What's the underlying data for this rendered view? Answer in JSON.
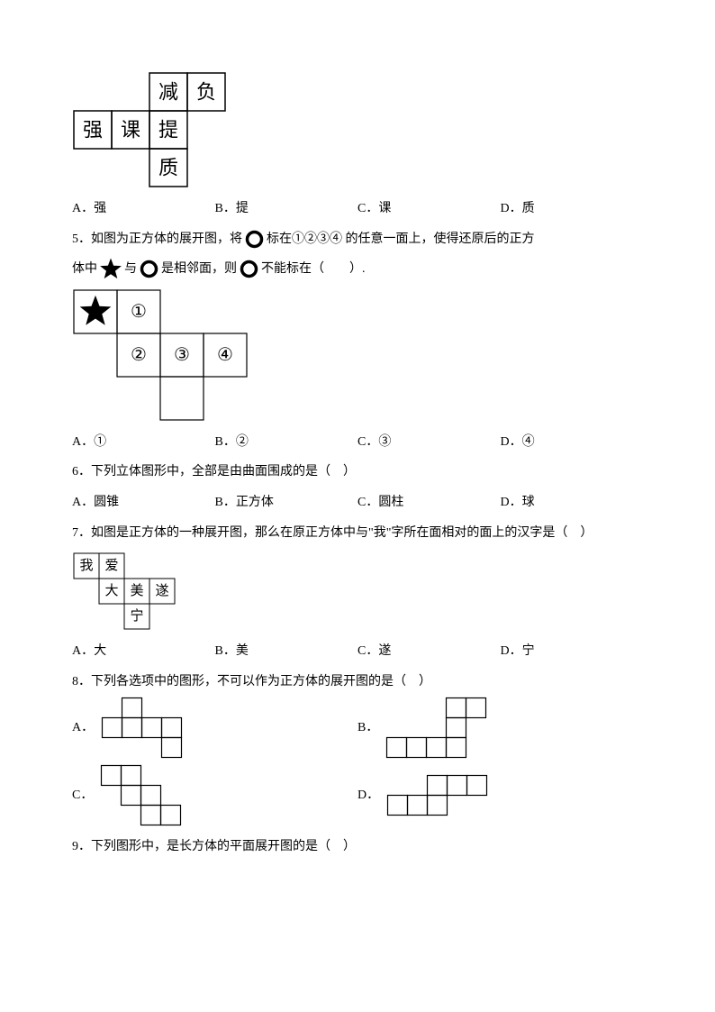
{
  "q4": {
    "net": {
      "cell": 42,
      "stroke": "#000000",
      "stroke_w": 1.5,
      "font_size": 22,
      "font_family": "KaiTi",
      "cells": [
        {
          "r": 0,
          "c": 2,
          "t": "减"
        },
        {
          "r": 0,
          "c": 3,
          "t": "负"
        },
        {
          "r": 1,
          "c": 0,
          "t": "强"
        },
        {
          "r": 1,
          "c": 1,
          "t": "课"
        },
        {
          "r": 1,
          "c": 2,
          "t": "提"
        },
        {
          "r": 2,
          "c": 2,
          "t": "质"
        }
      ]
    },
    "opts": {
      "A": "A．强",
      "B": "B．提",
      "C": "C．课",
      "D": "D．质"
    }
  },
  "q5": {
    "line1a": "5．如图为正方体的展开图，将",
    "line1b": "标在①②③④ 的任意一面上，使得还原后的正方",
    "line2a": "体中",
    "line2b": "与",
    "line2c": "是相邻面，则",
    "line2d": "不能标在（　　）.",
    "net": {
      "cell": 48,
      "stroke": "#000000",
      "stroke_w": 1.2,
      "cells": [
        {
          "r": 0,
          "c": 0,
          "star": true
        },
        {
          "r": 0,
          "c": 1,
          "t": "①"
        },
        {
          "r": 1,
          "c": 1,
          "t": "②"
        },
        {
          "r": 1,
          "c": 2,
          "t": "③"
        },
        {
          "r": 1,
          "c": 3,
          "t": "④"
        },
        {
          "r": 2,
          "c": 2,
          "t": ""
        }
      ],
      "star_fill": "#000000",
      "label_font_size": 20
    },
    "opts": {
      "A": "A．①",
      "B": "B．②",
      "C": "C．③",
      "D": "D．④"
    }
  },
  "q6": {
    "text": "6．下列立体图形中，全部是由曲面围成的是（　）",
    "opts": {
      "A": "A．圆锥",
      "B": "B．正方体",
      "C": "C．圆柱",
      "D": "D．球"
    }
  },
  "q7": {
    "text": "7．如图是正方体的一种展开图，那么在原正方体中与\"我\"字所在面相对的面上的汉字是（　）",
    "net": {
      "cell": 28,
      "stroke": "#000000",
      "stroke_w": 1,
      "font_size": 15,
      "cells": [
        {
          "r": 0,
          "c": 0,
          "t": "我"
        },
        {
          "r": 0,
          "c": 1,
          "t": "爱"
        },
        {
          "r": 1,
          "c": 1,
          "t": "大"
        },
        {
          "r": 1,
          "c": 2,
          "t": "美"
        },
        {
          "r": 1,
          "c": 3,
          "t": "遂"
        },
        {
          "r": 2,
          "c": 2,
          "t": "宁"
        }
      ]
    },
    "opts": {
      "A": "A．大",
      "B": "B．美",
      "C": "C．遂",
      "D": "D．宁"
    }
  },
  "q8": {
    "text": "8．下列各选项中的图形，不可以作为正方体的展开图的是（　）",
    "cell": 22,
    "stroke": "#000000",
    "stroke_w": 1.2,
    "labels": {
      "A": "A．",
      "B": "B．",
      "C": "C．",
      "D": "D．"
    },
    "A": [
      [
        0,
        1
      ],
      [
        1,
        0
      ],
      [
        1,
        1
      ],
      [
        1,
        2
      ],
      [
        1,
        3
      ],
      [
        2,
        3
      ]
    ],
    "B": [
      [
        0,
        3
      ],
      [
        0,
        4
      ],
      [
        1,
        3
      ],
      [
        2,
        0
      ],
      [
        2,
        1
      ],
      [
        2,
        2
      ],
      [
        2,
        3
      ]
    ],
    "C": [
      [
        0,
        0
      ],
      [
        0,
        1
      ],
      [
        1,
        1
      ],
      [
        1,
        2
      ],
      [
        2,
        2
      ],
      [
        2,
        3
      ]
    ],
    "D": [
      [
        0,
        2
      ],
      [
        0,
        3
      ],
      [
        0,
        4
      ],
      [
        1,
        0
      ],
      [
        1,
        1
      ],
      [
        1,
        2
      ]
    ]
  },
  "q9": {
    "text": "9．下列图形中，是长方体的平面展开图的是（　）"
  },
  "icons": {
    "circle_stroke": "#000000",
    "circle_sw": 3.5,
    "circle_r": 8,
    "star_fill": "#000000"
  }
}
